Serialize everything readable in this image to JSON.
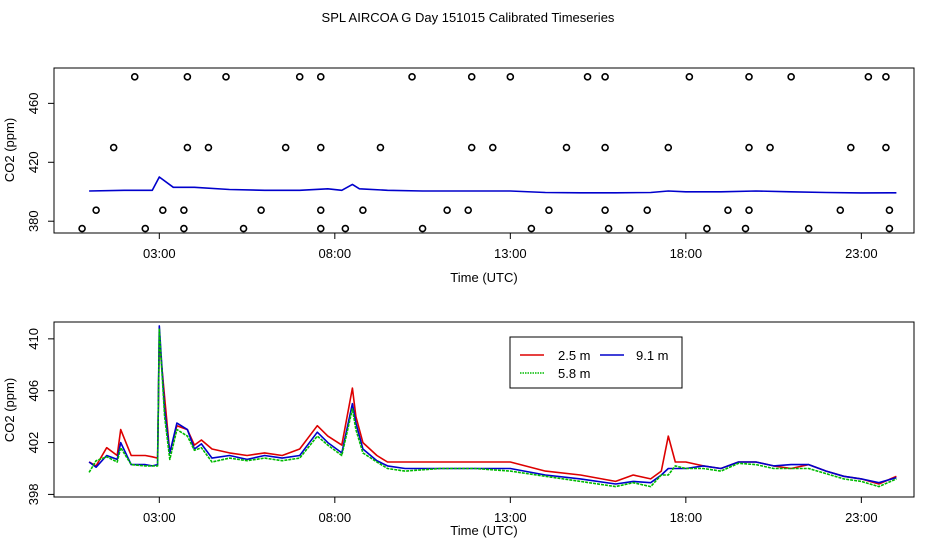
{
  "figure_title": "SPL AIRCOA G  Day 151015  Calibrated Timeseries",
  "colors": {
    "series_2_5": "#dd0000",
    "series_5_8": "#00bb00",
    "series_9_1": "#0000cc",
    "axis": "#000000"
  },
  "chart_data": [
    {
      "type": "line",
      "title": "SPL AIRCOA G  Day 151015  Calibrated Timeseries",
      "xlabel": "Time (UTC)",
      "ylabel": "CO2 (ppm)",
      "xlim": [
        0.0,
        24.5
      ],
      "ylim": [
        372,
        484
      ],
      "xticks": [
        3,
        8,
        13,
        18,
        23
      ],
      "xtick_labels": [
        "03:00",
        "08:00",
        "13:00",
        "18:00",
        "23:00"
      ],
      "yticks": [
        380,
        420,
        460
      ],
      "ytick_labels": [
        "380",
        "420",
        "460"
      ],
      "series": [
        {
          "name": "blue line",
          "color": "#0000cc",
          "x": [
            1.0,
            2.0,
            2.8,
            3.0,
            3.4,
            4.0,
            5.0,
            6.0,
            7.0,
            7.8,
            8.2,
            8.5,
            8.7,
            9.5,
            10.5,
            12.0,
            13.0,
            14.0,
            15.0,
            16.0,
            17.0,
            17.5,
            18.0,
            19.0,
            20.0,
            21.0,
            22.0,
            23.0,
            24.0
          ],
          "y": [
            400.5,
            401,
            401,
            410,
            403,
            403,
            401.5,
            401,
            401,
            402,
            401,
            405,
            402,
            401,
            400.5,
            400.5,
            400.5,
            399.5,
            399.3,
            399.3,
            399.5,
            400.5,
            400,
            400,
            400.5,
            400,
            399.5,
            399.2,
            399.3
          ]
        },
        {
          "name": "high flagged points",
          "type": "scatter",
          "x": [
            2.3,
            3.8,
            4.9,
            7.0,
            7.6,
            10.2,
            11.9,
            13.0,
            15.2,
            15.7,
            18.1,
            19.8,
            21.0,
            23.2,
            23.7
          ],
          "y": [
            478,
            478,
            478,
            478,
            478,
            478,
            478,
            478,
            478,
            478,
            478,
            478,
            478,
            478,
            478
          ]
        },
        {
          "name": "mid flagged points",
          "type": "scatter",
          "x": [
            1.7,
            3.8,
            4.4,
            6.6,
            7.6,
            9.3,
            11.9,
            12.5,
            14.6,
            15.7,
            17.5,
            19.8,
            20.4,
            22.7,
            23.7
          ],
          "y": [
            430,
            430,
            430,
            430,
            430,
            430,
            430,
            430,
            430,
            430,
            430,
            430,
            430,
            430,
            430
          ]
        },
        {
          "name": "low flagged points",
          "type": "scatter",
          "x": [
            1.2,
            3.1,
            3.7,
            5.9,
            7.6,
            8.8,
            11.2,
            11.8,
            14.1,
            15.7,
            16.9,
            19.2,
            19.8,
            22.4,
            23.8
          ],
          "y": [
            387.5,
            387.5,
            387.5,
            387.5,
            387.5,
            387.5,
            387.5,
            387.5,
            387.5,
            387.5,
            387.5,
            387.5,
            387.5,
            387.5,
            387.5
          ]
        },
        {
          "name": "bottom flagged points",
          "type": "scatter",
          "x": [
            0.8,
            2.6,
            3.7,
            5.4,
            7.6,
            8.3,
            10.5,
            13.6,
            15.8,
            16.4,
            18.6,
            19.7,
            21.5,
            23.8
          ],
          "y": [
            375,
            375,
            375,
            375,
            375,
            375,
            375,
            375,
            375,
            375,
            375,
            375,
            375,
            375
          ]
        }
      ]
    },
    {
      "type": "line",
      "xlabel": "Time (UTC)",
      "ylabel": "CO2 (ppm)",
      "xlim": [
        0.0,
        24.5
      ],
      "ylim": [
        397.8,
        411.3
      ],
      "xticks": [
        3,
        8,
        13,
        18,
        23
      ],
      "xtick_labels": [
        "03:00",
        "08:00",
        "13:00",
        "18:00",
        "23:00"
      ],
      "yticks": [
        398,
        402,
        406,
        410
      ],
      "ytick_labels": [
        "398",
        "402",
        "406",
        "410"
      ],
      "legend": {
        "placement": "top-center",
        "entries": [
          "2.5 m",
          "9.1 m",
          "5.8 m"
        ]
      },
      "series": [
        {
          "name": "2.5 m",
          "color": "#dd0000",
          "x": [
            1.0,
            1.2,
            1.5,
            1.8,
            1.9,
            2.2,
            2.6,
            2.8,
            2.95,
            3.0,
            3.15,
            3.3,
            3.5,
            3.8,
            4.0,
            4.2,
            4.5,
            5.0,
            5.5,
            6.0,
            6.5,
            7.0,
            7.5,
            7.8,
            8.2,
            8.5,
            8.6,
            8.8,
            9.2,
            9.5,
            10.0,
            11.0,
            12.0,
            13.0,
            14.0,
            15.0,
            16.0,
            16.5,
            17.0,
            17.3,
            17.5,
            17.7,
            18.0,
            18.5,
            19.0,
            19.5,
            20.0,
            20.5,
            21.0,
            21.5,
            22.0,
            22.5,
            23.0,
            23.5,
            24.0
          ],
          "y": [
            400.5,
            400.2,
            401.6,
            401,
            403,
            401,
            401,
            400.9,
            400.8,
            410,
            405.5,
            401.2,
            403.3,
            403,
            401.8,
            402.2,
            401.5,
            401.2,
            401,
            401.2,
            401,
            401.5,
            403.3,
            402.5,
            401.8,
            406.2,
            404,
            402,
            401,
            400.5,
            400.5,
            400.5,
            400.5,
            400.5,
            399.8,
            399.5,
            399,
            399.5,
            399.2,
            399.8,
            402.5,
            400.5,
            400.5,
            400.2,
            400,
            400.5,
            400.5,
            400.2,
            400,
            400.3,
            399.8,
            399.4,
            399.2,
            398.8,
            399.4
          ]
        },
        {
          "name": "9.1 m",
          "color": "#0000cc",
          "x": [
            1.0,
            1.2,
            1.5,
            1.8,
            1.9,
            2.2,
            2.6,
            2.8,
            2.95,
            3.0,
            3.15,
            3.3,
            3.5,
            3.8,
            4.0,
            4.2,
            4.5,
            5.0,
            5.5,
            6.0,
            6.5,
            7.0,
            7.5,
            7.8,
            8.2,
            8.5,
            8.6,
            8.8,
            9.2,
            9.5,
            10.0,
            11.0,
            12.0,
            13.0,
            14.0,
            15.0,
            16.0,
            16.5,
            17.0,
            17.3,
            17.5,
            17.7,
            18.0,
            18.5,
            19.0,
            19.5,
            20.0,
            20.5,
            21.0,
            21.5,
            22.0,
            22.5,
            23.0,
            23.5,
            24.0
          ],
          "y": [
            400.5,
            400.1,
            401,
            400.7,
            402,
            400.3,
            400.3,
            400.2,
            400.3,
            411,
            404.5,
            401.2,
            403.5,
            403,
            401.5,
            401.9,
            400.8,
            401,
            400.7,
            401,
            400.8,
            401,
            402.8,
            402,
            401.2,
            405,
            403.5,
            401.5,
            400.6,
            400.2,
            400,
            400,
            400,
            400,
            399.5,
            399.2,
            398.8,
            399,
            398.9,
            399.5,
            400,
            400,
            400,
            400.2,
            400,
            400.5,
            400.5,
            400.2,
            400.3,
            400.3,
            399.8,
            399.4,
            399.2,
            398.9,
            399.3
          ]
        },
        {
          "name": "5.8 m",
          "color": "#00bb00",
          "x": [
            1.0,
            1.2,
            1.5,
            1.8,
            1.9,
            2.2,
            2.6,
            2.8,
            2.95,
            3.0,
            3.15,
            3.3,
            3.5,
            3.8,
            4.0,
            4.2,
            4.5,
            5.0,
            5.5,
            6.0,
            6.5,
            7.0,
            7.5,
            7.8,
            8.2,
            8.5,
            8.6,
            8.8,
            9.2,
            9.5,
            10.0,
            11.0,
            12.0,
            13.0,
            14.0,
            15.0,
            16.0,
            16.5,
            17.0,
            17.3,
            17.5,
            17.7,
            18.0,
            18.5,
            19.0,
            19.5,
            20.0,
            20.5,
            21.0,
            21.5,
            22.0,
            22.5,
            23.0,
            23.5,
            24.0
          ],
          "y": [
            399.7,
            400.6,
            400.9,
            400.5,
            401.6,
            400.3,
            400.2,
            400.2,
            400.2,
            410.8,
            404,
            400.7,
            403,
            402.5,
            401.4,
            401.6,
            400.5,
            400.8,
            400.6,
            400.8,
            400.6,
            400.8,
            402.5,
            401.8,
            401,
            404.6,
            403,
            401.2,
            400.5,
            400,
            399.8,
            400,
            400,
            399.8,
            399.4,
            399,
            398.6,
            398.9,
            398.6,
            399.5,
            399.5,
            400.2,
            400,
            400,
            399.8,
            400.4,
            400.3,
            400,
            400,
            400,
            399.6,
            399.2,
            399,
            398.6,
            399.2
          ]
        }
      ]
    }
  ]
}
